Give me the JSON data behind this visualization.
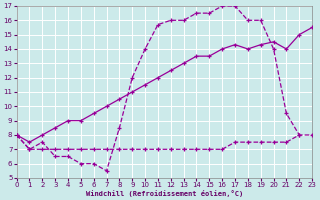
{
  "bg_color": "#cceaea",
  "grid_color": "#ffffff",
  "line_color": "#990099",
  "xlim": [
    0,
    23
  ],
  "ylim": [
    5,
    17
  ],
  "xticks": [
    0,
    1,
    2,
    3,
    4,
    5,
    6,
    7,
    8,
    9,
    10,
    11,
    12,
    13,
    14,
    15,
    16,
    17,
    18,
    19,
    20,
    21,
    22,
    23
  ],
  "yticks": [
    5,
    6,
    7,
    8,
    9,
    10,
    11,
    12,
    13,
    14,
    15,
    16,
    17
  ],
  "xlabel": "Windchill (Refroidissement éolien,°C)",
  "line1_x": [
    0,
    1,
    2,
    3,
    4,
    5,
    6,
    7,
    8,
    9,
    10,
    11,
    12,
    13,
    14,
    15,
    16,
    17,
    18,
    19,
    20,
    21,
    22
  ],
  "line1_y": [
    8.0,
    7.0,
    7.5,
    6.5,
    6.5,
    6.0,
    6.0,
    5.5,
    8.5,
    12.0,
    14.0,
    15.7,
    16.0,
    16.0,
    16.5,
    16.5,
    17.0,
    17.0,
    16.0,
    16.0,
    14.0,
    9.5,
    8.0
  ],
  "line2_x": [
    0,
    1,
    2,
    3,
    4,
    5,
    6,
    7,
    8,
    9,
    10,
    11,
    12,
    13,
    14,
    15,
    16,
    17,
    18,
    19,
    20,
    21,
    22,
    23
  ],
  "line2_y": [
    8.0,
    7.5,
    8.0,
    8.5,
    9.0,
    9.0,
    9.5,
    10.0,
    10.5,
    11.0,
    11.5,
    12.0,
    12.5,
    13.0,
    13.5,
    13.5,
    14.0,
    14.3,
    14.0,
    14.3,
    14.5,
    14.0,
    15.0,
    15.5
  ],
  "line3_x": [
    0,
    1,
    2,
    3,
    4,
    5,
    6,
    7,
    8,
    9,
    10,
    11,
    12,
    13,
    14,
    15,
    16,
    17,
    18,
    19,
    20,
    21,
    22,
    23
  ],
  "line3_y": [
    8.0,
    7.0,
    7.0,
    7.0,
    7.0,
    7.0,
    7.0,
    7.0,
    7.0,
    7.0,
    7.0,
    7.0,
    7.0,
    7.0,
    7.0,
    7.0,
    7.0,
    7.5,
    7.5,
    7.5,
    7.5,
    7.5,
    8.0,
    8.0
  ]
}
